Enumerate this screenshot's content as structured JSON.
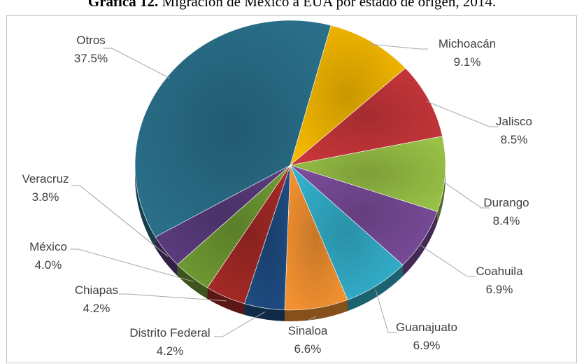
{
  "title_prefix": "Gráfica 12.",
  "title_text": "Migración de México a EUA por estado de origen, 2014.",
  "chart_data": {
    "type": "pie",
    "title": "Migración de México a EUA por estado de origen, 2014.",
    "legend": "none",
    "slices": [
      {
        "label": "Michoacán",
        "value": 9.1,
        "value_label": "9.1%",
        "color": "#f5b800"
      },
      {
        "label": "Jalisco",
        "value": 8.5,
        "value_label": "8.5%",
        "color": "#c8363a"
      },
      {
        "label": "Durango",
        "value": 8.4,
        "value_label": "8.4%",
        "color": "#98c146"
      },
      {
        "label": "Coahuila",
        "value": 6.9,
        "value_label": "6.9%",
        "color": "#7a4c9a"
      },
      {
        "label": "Guanajuato",
        "value": 6.9,
        "value_label": "6.9%",
        "color": "#33b0cc"
      },
      {
        "label": "Sinaloa",
        "value": 6.6,
        "value_label": "6.6%",
        "color": "#f39131"
      },
      {
        "label": "Distrito Federal",
        "value": 4.2,
        "value_label": "4.2%",
        "color": "#1e4c82"
      },
      {
        "label": "Chiapas",
        "value": 4.2,
        "value_label": "4.2%",
        "color": "#a52a26"
      },
      {
        "label": "México",
        "value": 4.0,
        "value_label": "4.0%",
        "color": "#6f9a33"
      },
      {
        "label": "Veracruz",
        "value": 3.8,
        "value_label": "3.8%",
        "color": "#5a3c7e"
      },
      {
        "label": "Otros",
        "value": 37.5,
        "value_label": "37.5%",
        "color": "#2a6f8a"
      }
    ]
  }
}
